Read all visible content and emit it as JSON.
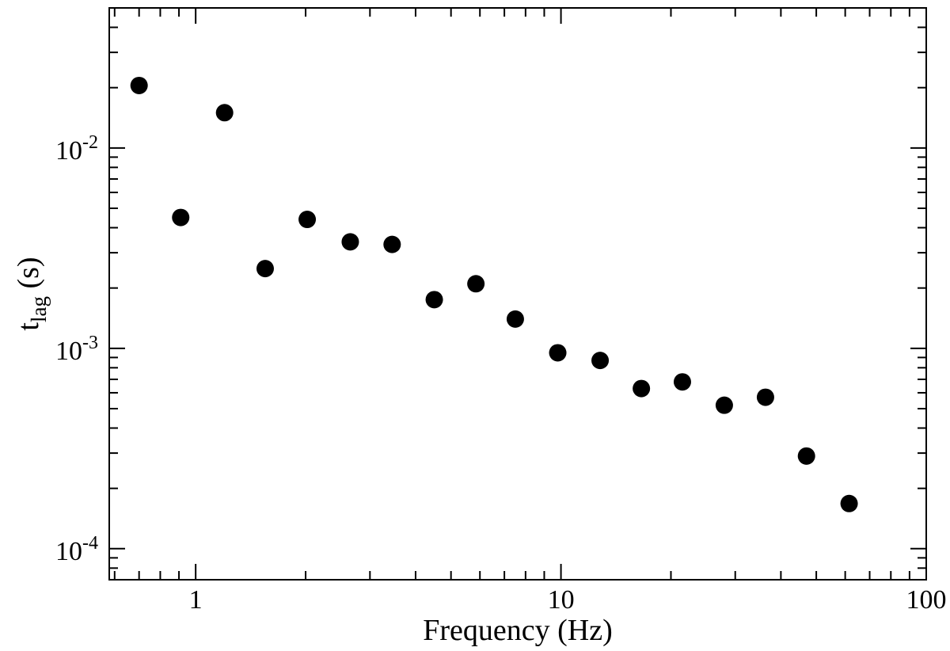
{
  "chart_data": {
    "type": "scatter",
    "title": "",
    "xlabel": "Frequency (Hz)",
    "ylabel": {
      "base": "t",
      "sub": "lag",
      "rest": " (s)"
    },
    "x_scale": "log",
    "y_scale": "log",
    "xlim": [
      0.58,
      100
    ],
    "ylim": [
      7e-05,
      0.05
    ],
    "grid": false,
    "x_ticks": [
      {
        "value": 1,
        "label": "1"
      },
      {
        "value": 10,
        "label": "10"
      },
      {
        "value": 100,
        "label": "100"
      }
    ],
    "y_ticks": [
      {
        "value": 0.0001,
        "base": "10",
        "exp": "-4"
      },
      {
        "value": 0.001,
        "base": "10",
        "exp": "-3"
      },
      {
        "value": 0.01,
        "base": "10",
        "exp": "-2"
      }
    ],
    "marker_color": "#000000",
    "points": [
      {
        "x": 0.7,
        "y": 0.0205
      },
      {
        "x": 0.91,
        "y": 0.0045
      },
      {
        "x": 1.2,
        "y": 0.015
      },
      {
        "x": 1.55,
        "y": 0.0025
      },
      {
        "x": 2.02,
        "y": 0.0044
      },
      {
        "x": 2.65,
        "y": 0.0034
      },
      {
        "x": 3.45,
        "y": 0.0033
      },
      {
        "x": 4.5,
        "y": 0.00175
      },
      {
        "x": 5.85,
        "y": 0.0021
      },
      {
        "x": 7.5,
        "y": 0.0014
      },
      {
        "x": 9.8,
        "y": 0.00095
      },
      {
        "x": 12.8,
        "y": 0.00087
      },
      {
        "x": 16.6,
        "y": 0.00063
      },
      {
        "x": 21.5,
        "y": 0.00068
      },
      {
        "x": 28.0,
        "y": 0.00052
      },
      {
        "x": 36.3,
        "y": 0.00057
      },
      {
        "x": 47.0,
        "y": 0.00029
      },
      {
        "x": 61.5,
        "y": 0.000168
      }
    ]
  }
}
